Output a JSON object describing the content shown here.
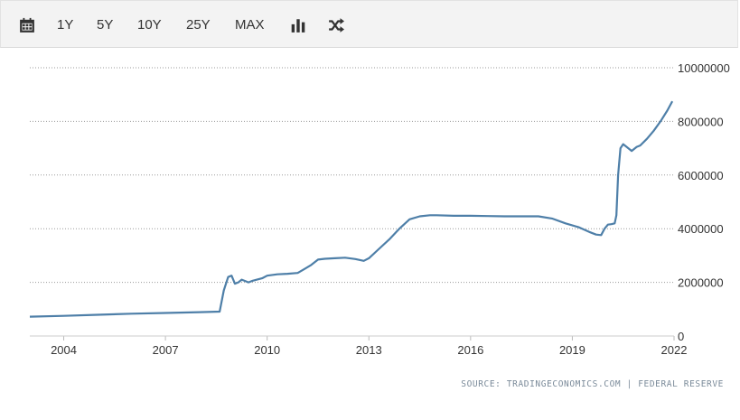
{
  "toolbar": {
    "calendar_icon": "calendar-icon",
    "ranges": [
      "1Y",
      "5Y",
      "10Y",
      "25Y",
      "MAX"
    ],
    "bar_chart_icon": "bar-chart-icon",
    "shuffle_icon": "shuffle-icon"
  },
  "colors": {
    "line": "#4e7fa8",
    "grid": "#9a9a9a",
    "text": "#333333",
    "toolbar_bg": "#f3f3f3"
  },
  "chart_data": {
    "type": "line",
    "title": "",
    "xlabel": "",
    "ylabel": "",
    "x_ticks": [
      "2004",
      "2007",
      "2010",
      "2013",
      "2016",
      "2019",
      "2022"
    ],
    "y_ticks": [
      "0",
      "2000000",
      "4000000",
      "6000000",
      "8000000",
      "10000000"
    ],
    "xlim": [
      2003.0,
      2022.0
    ],
    "ylim": [
      0,
      10000000
    ],
    "grid": "horizontal dotted",
    "legend": "none",
    "series": [
      {
        "x": [
          2003.0,
          2004.0,
          2005.0,
          2006.0,
          2007.0,
          2008.0,
          2008.6,
          2008.72,
          2008.85,
          2008.95,
          2009.05,
          2009.15,
          2009.25,
          2009.35,
          2009.45,
          2009.55,
          2009.7,
          2009.85,
          2010.0,
          2010.3,
          2010.6,
          2010.9,
          2011.1,
          2011.3,
          2011.5,
          2011.7,
          2012.0,
          2012.3,
          2012.6,
          2012.85,
          2013.0,
          2013.3,
          2013.6,
          2013.9,
          2014.2,
          2014.5,
          2014.8,
          2015.0,
          2015.5,
          2016.0,
          2016.5,
          2017.0,
          2017.5,
          2018.0,
          2018.4,
          2018.8,
          2019.2,
          2019.5,
          2019.7,
          2019.85,
          2019.95,
          2020.05,
          2020.15,
          2020.25,
          2020.3,
          2020.35,
          2020.42,
          2020.5,
          2020.6,
          2020.75,
          2020.9,
          2021.0,
          2021.2,
          2021.4,
          2021.6,
          2021.8,
          2021.95
        ],
        "y": [
          720000,
          750000,
          790000,
          830000,
          860000,
          890000,
          910000,
          1700000,
          2200000,
          2250000,
          1950000,
          2000000,
          2100000,
          2050000,
          2000000,
          2050000,
          2100000,
          2150000,
          2250000,
          2300000,
          2320000,
          2350000,
          2500000,
          2650000,
          2850000,
          2880000,
          2900000,
          2920000,
          2870000,
          2800000,
          2900000,
          3250000,
          3600000,
          4000000,
          4350000,
          4460000,
          4500000,
          4500000,
          4480000,
          4480000,
          4470000,
          4460000,
          4460000,
          4460000,
          4380000,
          4200000,
          4050000,
          3880000,
          3780000,
          3760000,
          4000000,
          4150000,
          4170000,
          4200000,
          4500000,
          6000000,
          7000000,
          7150000,
          7050000,
          6900000,
          7050000,
          7100000,
          7350000,
          7650000,
          8000000,
          8400000,
          8750000
        ]
      }
    ]
  },
  "source": {
    "prefix": "SOURCE:",
    "site": "TRADINGECONOMICS.COM",
    "sep": "|",
    "org": "FEDERAL RESERVE"
  }
}
